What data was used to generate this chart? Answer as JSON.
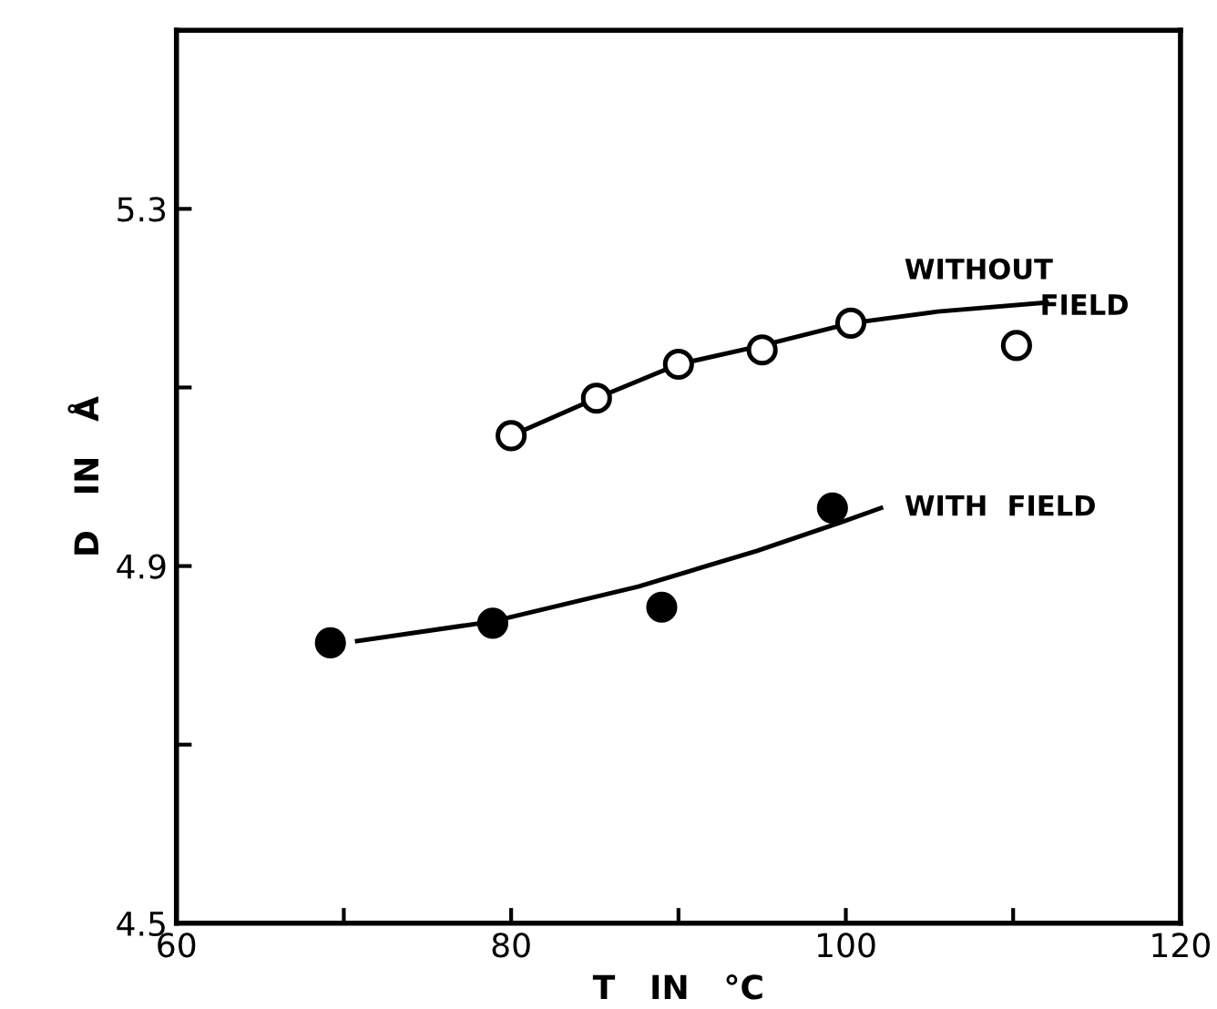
{
  "chart_data": {
    "type": "scatter",
    "xlabel": "T   IN   °C",
    "ylabel": "D   IN   Å",
    "xlim": [
      60,
      120
    ],
    "ylim": [
      4.5,
      5.5
    ],
    "xticks": [
      60,
      {
        "value": 70,
        "label": null
      },
      80,
      {
        "value": 90,
        "label": null
      },
      100,
      {
        "value": 110,
        "label": null
      },
      120
    ],
    "yticks": [
      4.5,
      {
        "value": 4.7,
        "label": null
      },
      4.9,
      {
        "value": 5.1,
        "label": null
      },
      5.3
    ],
    "grid": false,
    "legend": false,
    "marker": "circle",
    "series": [
      {
        "color": "#ffffff",
        "x": [
          80,
          85.1,
          90,
          95,
          100.3,
          110.2
        ],
        "values": [
          5.046,
          5.088,
          5.126,
          5.142,
          5.172,
          5.147
        ]
      },
      {
        "color": "#000000",
        "x": [
          69.2,
          78.9,
          89,
          99.2
        ],
        "values": [
          4.814,
          4.836,
          4.854,
          4.965
        ]
      },
      {
        "type": "line",
        "color": "#000000",
        "marker": "none",
        "x": [
          80,
          85.1,
          90,
          95,
          100.3,
          105.5,
          112
        ],
        "values": [
          5.046,
          5.088,
          5.126,
          5.147,
          5.172,
          5.185,
          5.195
        ]
      },
      {
        "type": "line",
        "color": "#000000",
        "marker": "none",
        "x": [
          70.8,
          78.9,
          87.6,
          94.7,
          99.7,
          102.1
        ],
        "values": [
          4.816,
          4.838,
          4.877,
          4.917,
          4.949,
          4.965
        ]
      }
    ],
    "annotations": [
      "WITHOUT",
      "FIELD",
      "WITH  FIELD"
    ]
  }
}
